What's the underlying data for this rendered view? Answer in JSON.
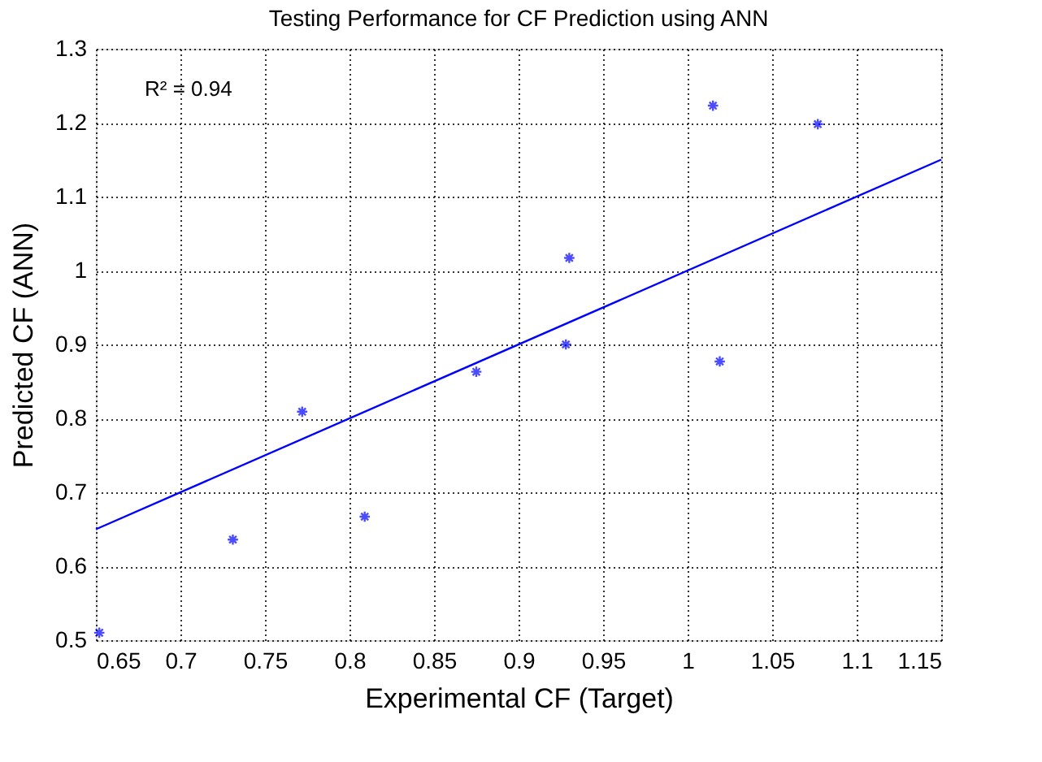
{
  "chart_data": {
    "type": "scatter",
    "title": "Testing Performance for CF Prediction using ANN",
    "xlabel": "Experimental CF (Target)",
    "ylabel": "Predicted CF (ANN)",
    "series": [
      {
        "type": "scatter",
        "color": "#0000ff",
        "marker": "cross",
        "x": [
          0.652,
          0.731,
          0.772,
          0.809,
          0.875,
          0.928,
          0.93,
          1.015,
          1.019,
          1.077
        ],
        "values": [
          0.51,
          0.636,
          0.809,
          0.667,
          0.863,
          0.9,
          1.017,
          1.223,
          0.877,
          1.198
        ]
      },
      {
        "type": "line",
        "color": "#0000ff",
        "x": [
          0.65,
          1.15
        ],
        "values": [
          0.65,
          1.15
        ]
      }
    ],
    "xlim": [
      0.65,
      1.15
    ],
    "xticks": [
      0.65,
      0.7,
      0.75,
      0.8,
      0.85,
      0.9,
      0.95,
      1,
      1.05,
      1.1,
      1.15
    ],
    "ylim": [
      0.5,
      1.3
    ],
    "yticks": [
      0.5,
      0.6,
      0.7,
      0.8,
      0.9,
      1,
      1.1,
      1.2,
      1.3
    ],
    "grid": true,
    "legend": false,
    "annotations": [
      "R² = 0.94"
    ]
  }
}
